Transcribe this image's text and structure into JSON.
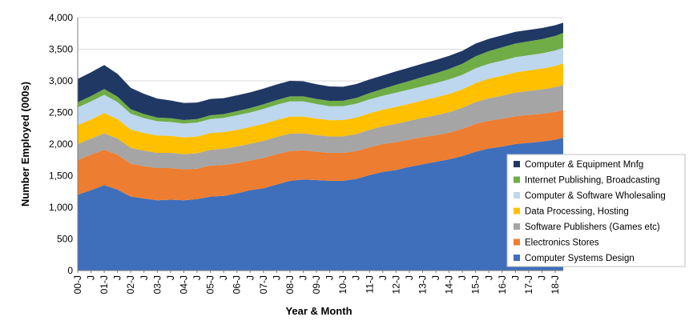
{
  "chart_data": {
    "type": "area",
    "stacked": true,
    "xlabel": "Year & Month",
    "ylabel": "Number Employed (000s)",
    "ylim": [
      0,
      4000
    ],
    "yticks": [
      0,
      500,
      1000,
      1500,
      2000,
      2500,
      3000,
      3500,
      4000
    ],
    "ytick_labels": [
      "0",
      "500",
      "1,000",
      "1,500",
      "2,000",
      "2,500",
      "3,000",
      "3,500",
      "4,000"
    ],
    "x_tick_labels": [
      "00-J",
      "J",
      "01-J",
      "J",
      "02-J",
      "J",
      "03-J",
      "J",
      "04-J",
      "J",
      "05-J",
      "J",
      "06-J",
      "J",
      "07-J",
      "J",
      "08-J",
      "J",
      "09-J",
      "J",
      "10-J",
      "J",
      "11-J",
      "J",
      "12-J",
      "J",
      "13-J",
      "J",
      "14-J",
      "J",
      "15-J",
      "J",
      "16-J",
      "J",
      "17-J",
      "J",
      "18-J"
    ],
    "x": [
      2000.0,
      2000.5,
      2001.0,
      2001.5,
      2002.0,
      2002.5,
      2003.0,
      2003.5,
      2004.0,
      2004.5,
      2005.0,
      2005.5,
      2006.0,
      2006.5,
      2007.0,
      2007.5,
      2008.0,
      2008.5,
      2009.0,
      2009.5,
      2010.0,
      2010.5,
      2011.0,
      2011.5,
      2012.0,
      2012.5,
      2013.0,
      2013.5,
      2014.0,
      2014.5,
      2015.0,
      2015.5,
      2016.0,
      2016.5,
      2017.0,
      2017.5,
      2018.0,
      2018.3
    ],
    "legend_position": "right",
    "grid": "horizontal",
    "series": [
      {
        "name": "Computer Systems Design",
        "color": "#3f6fbb",
        "values": [
          1200,
          1270,
          1350,
          1280,
          1170,
          1140,
          1110,
          1120,
          1110,
          1130,
          1170,
          1180,
          1220,
          1270,
          1300,
          1360,
          1420,
          1440,
          1430,
          1420,
          1420,
          1450,
          1510,
          1560,
          1590,
          1640,
          1680,
          1720,
          1760,
          1810,
          1880,
          1930,
          1960,
          2000,
          2020,
          2040,
          2070,
          2100
        ]
      },
      {
        "name": "Electronics Stores",
        "color": "#ed7d31",
        "values": [
          550,
          560,
          560,
          550,
          520,
          510,
          510,
          500,
          490,
          480,
          490,
          490,
          480,
          470,
          480,
          480,
          470,
          460,
          450,
          440,
          440,
          440,
          440,
          440,
          440,
          430,
          430,
          420,
          420,
          430,
          440,
          440,
          440,
          440,
          440,
          440,
          440,
          440
        ]
      },
      {
        "name": "Software Publishers (Games etc)",
        "color": "#a5a5a5",
        "values": [
          250,
          255,
          260,
          255,
          250,
          245,
          240,
          240,
          240,
          245,
          250,
          255,
          260,
          265,
          270,
          272,
          275,
          270,
          262,
          260,
          262,
          268,
          275,
          282,
          290,
          298,
          305,
          315,
          325,
          335,
          345,
          355,
          365,
          375,
          380,
          385,
          390,
          395
        ]
      },
      {
        "name": "Data Processing, Hosting",
        "color": "#ffc000",
        "values": [
          300,
          305,
          320,
          310,
          290,
          280,
          275,
          270,
          265,
          265,
          265,
          265,
          265,
          265,
          270,
          270,
          270,
          265,
          262,
          258,
          258,
          262,
          262,
          262,
          268,
          270,
          275,
          285,
          288,
          290,
          300,
          310,
          315,
          320,
          325,
          330,
          335,
          340
        ]
      },
      {
        "name": "Computer & Software Wholesaling",
        "color": "#bdd7ee",
        "values": [
          280,
          285,
          290,
          270,
          250,
          235,
          225,
          220,
          220,
          220,
          220,
          225,
          230,
          230,
          235,
          240,
          240,
          240,
          230,
          220,
          220,
          220,
          220,
          220,
          225,
          225,
          225,
          225,
          230,
          230,
          235,
          235,
          240,
          240,
          240,
          240,
          245,
          245
        ]
      },
      {
        "name": "Internet Publishing, Broadcasting",
        "color": "#70ad47",
        "values": [
          80,
          85,
          90,
          85,
          70,
          65,
          60,
          60,
          55,
          55,
          60,
          60,
          65,
          70,
          75,
          75,
          80,
          80,
          80,
          85,
          85,
          90,
          100,
          110,
          125,
          135,
          145,
          155,
          165,
          175,
          190,
          200,
          210,
          215,
          220,
          225,
          230,
          240
        ]
      },
      {
        "name": "Computer & Equipment Mnfg",
        "color": "#203864",
        "values": [
          370,
          375,
          380,
          360,
          340,
          320,
          300,
          280,
          270,
          262,
          258,
          252,
          250,
          248,
          246,
          246,
          245,
          238,
          232,
          228,
          222,
          220,
          215,
          212,
          212,
          212,
          212,
          210,
          208,
          205,
          200,
          195,
          190,
          185,
          180,
          175,
          170,
          160
        ]
      }
    ]
  }
}
